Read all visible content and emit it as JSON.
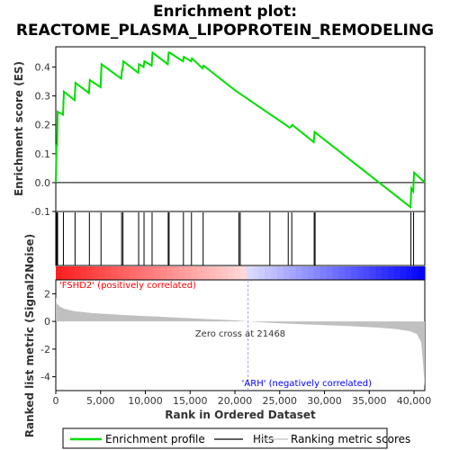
{
  "title_line1": "Enrichment plot:",
  "title_line2": "REACTOME_PLASMA_LIPOPROTEIN_REMODELING",
  "colors": {
    "enrichment": "#00dd00",
    "hits": "#000000",
    "metric_fill": "#c0c0c0",
    "positive_label": "#ff0000",
    "negative_label": "#0000ff",
    "zero_cross_line": "#a0a0ff"
  },
  "chart_data": [
    {
      "type": "line",
      "ylabel": "Enrichment score (ES)",
      "ylim": [
        -0.1,
        0.47
      ],
      "y_ticks": [
        -0.1,
        0.0,
        0.1,
        0.2,
        0.3,
        0.4
      ],
      "y_tick_labels": [
        "-0.1",
        "0.0",
        "0.1",
        "0.2",
        "0.3",
        "0.4"
      ],
      "xlim": [
        0,
        41200
      ],
      "series": [
        {
          "name": "Enrichment profile",
          "x": [
            0,
            80,
            150,
            200,
            800,
            900,
            2100,
            2200,
            3700,
            3800,
            5000,
            5100,
            7300,
            7400,
            7450,
            7550,
            9200,
            9300,
            9800,
            9900,
            10700,
            10800,
            12500,
            12600,
            12700,
            14200,
            14300,
            15100,
            15200,
            16400,
            16500,
            20000,
            24000,
            25900,
            26100,
            26300,
            26400,
            28800,
            28900,
            39600,
            39700,
            39900,
            40000,
            41200
          ],
          "y": [
            0.0,
            0.13,
            0.13,
            0.245,
            0.235,
            0.315,
            0.285,
            0.345,
            0.31,
            0.355,
            0.33,
            0.41,
            0.36,
            0.39,
            0.39,
            0.42,
            0.38,
            0.41,
            0.4,
            0.42,
            0.405,
            0.45,
            0.41,
            0.45,
            0.45,
            0.42,
            0.435,
            0.42,
            0.43,
            0.395,
            0.405,
            0.32,
            0.235,
            0.195,
            0.19,
            0.195,
            0.2,
            0.14,
            0.175,
            -0.085,
            -0.02,
            -0.03,
            0.035,
            0.0
          ]
        }
      ]
    },
    {
      "type": "hits",
      "series_name": "Hits",
      "hit_positions": [
        100,
        200,
        850,
        2150,
        3750,
        5050,
        7350,
        7500,
        9250,
        9850,
        10750,
        12550,
        12650,
        14250,
        15150,
        16450,
        20450,
        20600,
        23900,
        25950,
        26350,
        28850,
        28950,
        39650,
        39950
      ]
    },
    {
      "type": "area",
      "ylabel": "Ranked list metric (Signal2Noise)",
      "xlabel": "Rank in Ordered Dataset",
      "ylim": [
        -5,
        3
      ],
      "y_ticks": [
        -4,
        -2,
        0,
        2
      ],
      "y_tick_labels": [
        "-4",
        "-2",
        "0",
        "2"
      ],
      "x_ticks": [
        0,
        5000,
        10000,
        15000,
        20000,
        25000,
        30000,
        35000,
        40000
      ],
      "x_tick_labels": [
        "0",
        "5,000",
        "10,000",
        "15,000",
        "20,000",
        "25,000",
        "30,000",
        "35,000",
        "40,000"
      ],
      "series": [
        {
          "name": "Ranking metric scores",
          "x": [
            0,
            100,
            500,
            1000,
            2000,
            4000,
            8000,
            12000,
            16000,
            20000,
            21468,
            24000,
            28000,
            32000,
            36000,
            38000,
            39500,
            40300,
            40800,
            41000,
            41200
          ],
          "y": [
            1.8,
            1.3,
            1.05,
            0.9,
            0.75,
            0.6,
            0.45,
            0.33,
            0.2,
            0.08,
            0.0,
            -0.1,
            -0.22,
            -0.32,
            -0.45,
            -0.55,
            -0.7,
            -0.9,
            -1.5,
            -3.0,
            -4.8
          ]
        }
      ],
      "zero_cross_text": "Zero cross at 21468",
      "zero_cross_rank": 21468,
      "positive_text": "'FSHD2' (positively correlated)",
      "negative_text": "'ARH' (negatively correlated)"
    }
  ],
  "legend": {
    "items": [
      "Enrichment profile",
      "Hits",
      "Ranking metric scores"
    ]
  }
}
